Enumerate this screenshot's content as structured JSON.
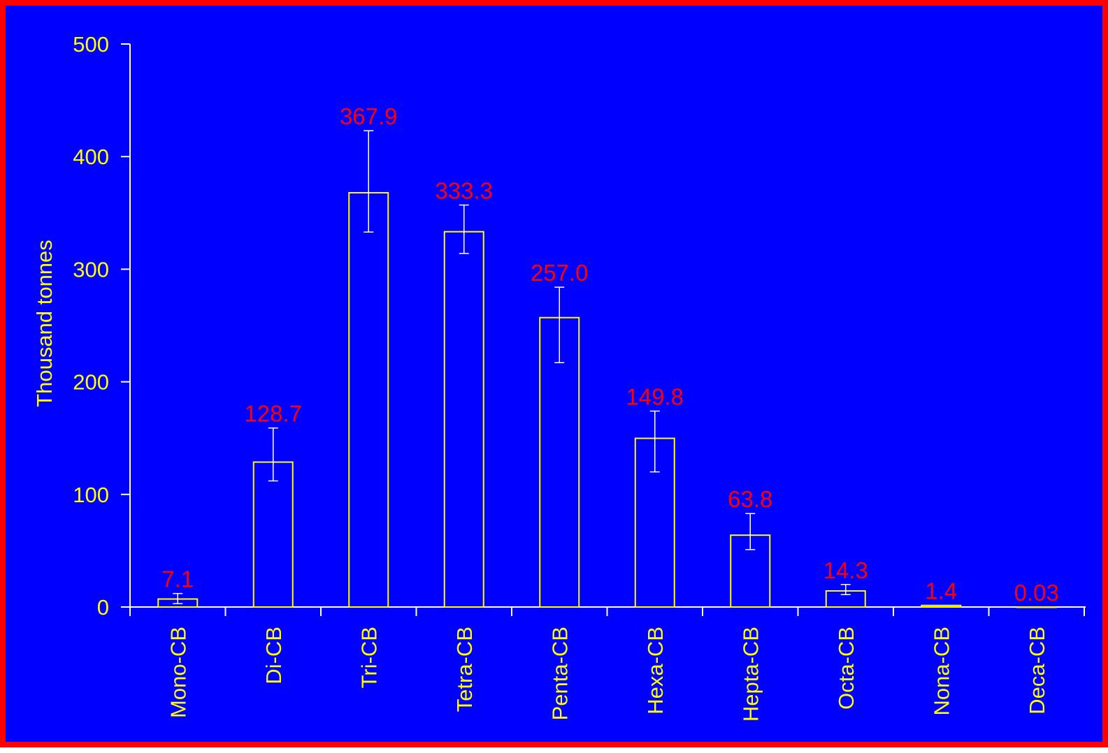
{
  "chart_data": {
    "type": "bar",
    "categories": [
      "Mono-CB",
      "Di-CB",
      "Tri-CB",
      "Tetra-CB",
      "Penta-CB",
      "Hexa-CB",
      "Hepta-CB",
      "Octa-CB",
      "Nona-CB",
      "Deca-CB"
    ],
    "values": [
      7.1,
      128.7,
      367.9,
      333.3,
      257.0,
      149.8,
      63.8,
      14.3,
      1.4,
      0.03
    ],
    "data_labels": [
      "7.1",
      "128.7",
      "367.9",
      "333.3",
      "257.0",
      "149.8",
      "63.8",
      "14.3",
      "1.4",
      "0.03"
    ],
    "error_low": [
      3,
      112,
      333,
      314,
      217,
      120,
      51,
      11,
      1.2,
      0.02
    ],
    "error_high": [
      12,
      159,
      423,
      357,
      284,
      174,
      83,
      20,
      1.7,
      0.04
    ],
    "ylabel": "Thousand tonnes",
    "xlabel": "",
    "ylim": [
      0,
      500
    ],
    "yticks": [
      0,
      100,
      200,
      300,
      400,
      500
    ],
    "grid": false,
    "colors": {
      "background": "#0000ff",
      "border": "#ff0000",
      "bar_outline": "#ffff00",
      "axis": "#ffffff",
      "axis_text": "#ffff00",
      "data_label": "#ff0000",
      "error_bar": "#ffffff"
    }
  }
}
